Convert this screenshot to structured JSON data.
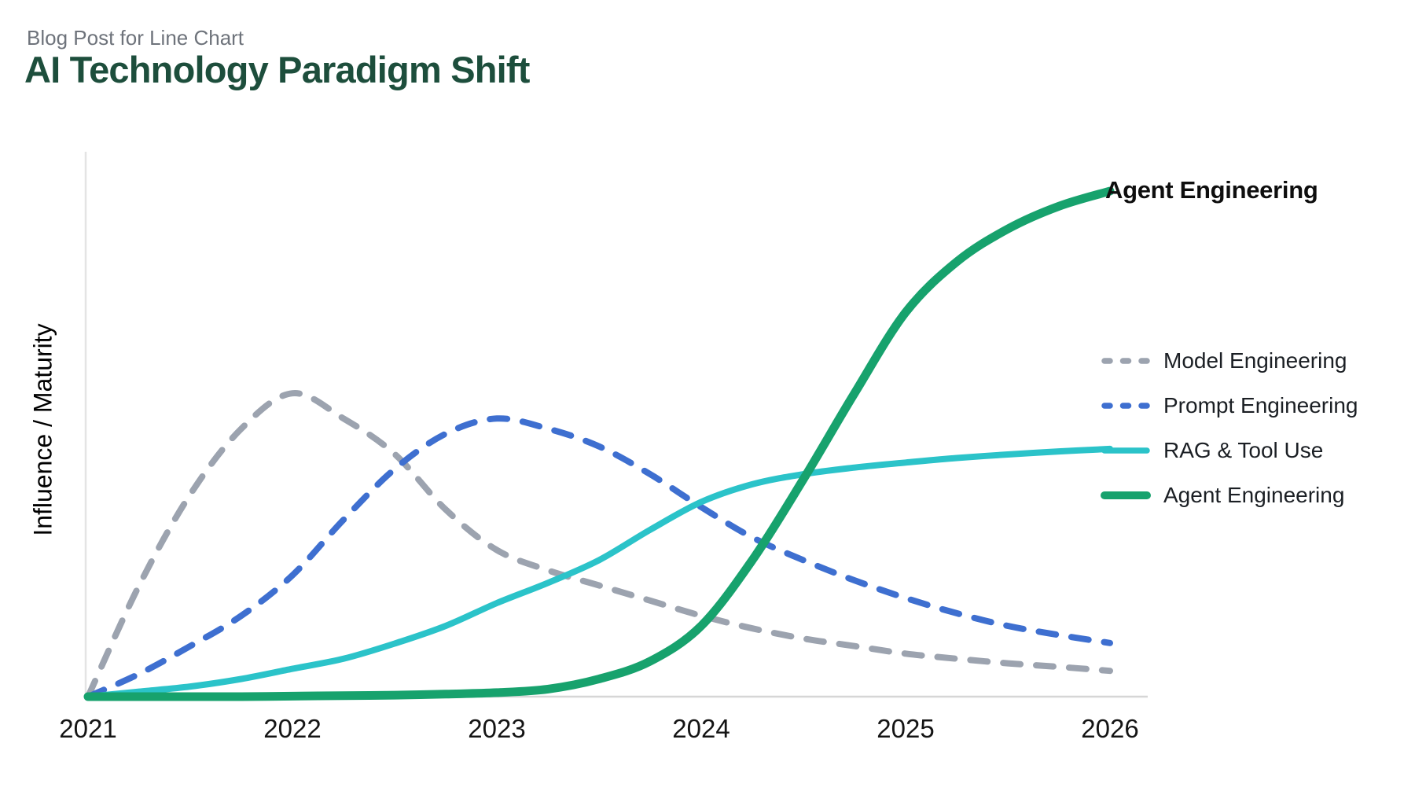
{
  "page": {
    "eyebrow": "Blog Post for Line Chart",
    "title": "AI Technology Paradigm Shift"
  },
  "colors": {
    "background": "#FFFFFF",
    "title": "#1D4E3C",
    "eyebrow": "#6E737B",
    "axis_x": "#D6D6D6",
    "axis_y": "#E4E4E4",
    "tick_label": "#141414",
    "legend_label": "#1B1F24",
    "annotation": "#0E0E0E"
  },
  "chart_data": {
    "type": "line",
    "title": "AI Technology Paradigm Shift",
    "xlabel": "",
    "ylabel": "Influence / Maturity",
    "x_ticks": [
      "2021",
      "2022",
      "2023",
      "2024",
      "2025",
      "2026"
    ],
    "x_range": [
      2021,
      2026
    ],
    "y_range": [
      0,
      1
    ],
    "y_axis_numeric_labels": false,
    "grid": false,
    "legend_position": "center-right",
    "x": [
      2021,
      2021.25,
      2021.5,
      2021.75,
      2022,
      2022.25,
      2022.5,
      2022.75,
      2023,
      2023.25,
      2023.5,
      2023.75,
      2024,
      2024.25,
      2024.5,
      2024.75,
      2025,
      2025.25,
      2025.5,
      2025.75,
      2026
    ],
    "series": [
      {
        "name": "Model Engineering",
        "color": "#9CA3AF",
        "style": "dashed",
        "line_width": 8,
        "values": [
          0,
          0.22,
          0.4,
          0.53,
          0.6,
          0.55,
          0.48,
          0.37,
          0.29,
          0.25,
          0.22,
          0.19,
          0.16,
          0.135,
          0.115,
          0.1,
          0.085,
          0.075,
          0.066,
          0.059,
          0.051
        ]
      },
      {
        "name": "Prompt Engineering",
        "color": "#3E6FD0",
        "style": "dashed",
        "line_width": 8,
        "values": [
          0,
          0.045,
          0.1,
          0.16,
          0.24,
          0.35,
          0.45,
          0.52,
          0.55,
          0.53,
          0.495,
          0.44,
          0.375,
          0.315,
          0.27,
          0.23,
          0.195,
          0.165,
          0.14,
          0.122,
          0.106
        ]
      },
      {
        "name": "RAG & Tool Use",
        "color": "#2BC3C9",
        "style": "solid",
        "line_width": 8,
        "values": [
          0,
          0.01,
          0.02,
          0.035,
          0.055,
          0.075,
          0.105,
          0.14,
          0.185,
          0.225,
          0.27,
          0.33,
          0.385,
          0.42,
          0.44,
          0.453,
          0.463,
          0.472,
          0.479,
          0.485,
          0.49
        ]
      },
      {
        "name": "Agent Engineering",
        "color": "#17A26D",
        "style": "solid",
        "line_width": 11,
        "values": [
          0,
          0,
          0,
          0,
          0.001,
          0.002,
          0.003,
          0.005,
          0.008,
          0.015,
          0.035,
          0.07,
          0.14,
          0.27,
          0.43,
          0.6,
          0.76,
          0.86,
          0.925,
          0.97,
          1.0
        ]
      }
    ],
    "annotation": {
      "text": "Agent Engineering",
      "x": 2026,
      "y": 1.0,
      "bold": true
    }
  }
}
